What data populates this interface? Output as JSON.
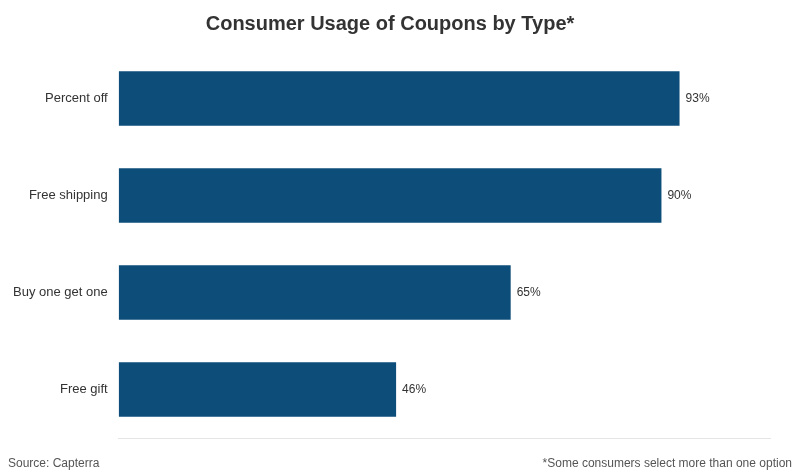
{
  "chart_data": {
    "type": "bar",
    "orientation": "horizontal",
    "title": "Consumer Usage of Coupons by Type*",
    "categories": [
      "Free gift",
      "Buy one get one",
      "Free shipping",
      "Percent off"
    ],
    "values": [
      46,
      65,
      90,
      93
    ],
    "value_labels": [
      "46%",
      "65%",
      "90%",
      "93%"
    ],
    "data_labels": true,
    "color": "#0D4D7A",
    "xlim": [
      0,
      108
    ],
    "tick_labels": "y",
    "grid": false,
    "annotations": [
      "Source: Capterra",
      "*Some consumers select more than one option"
    ]
  }
}
